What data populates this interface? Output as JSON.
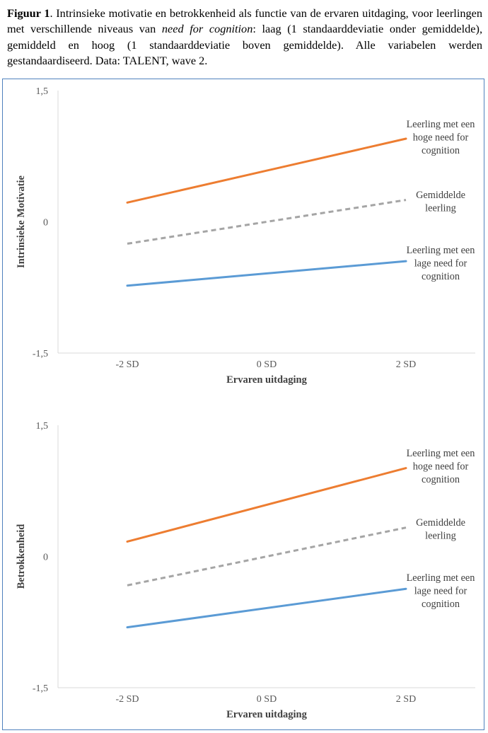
{
  "caption": {
    "label": "Figuur 1",
    "text_before": ". Intrinsieke motivatie en betrokkenheid als functie van de ervaren uitdaging, voor leerlingen met verschillende niveaus van ",
    "italic": "need for cognition",
    "text_after": ": laag (1 standaarddeviatie onder gemiddelde), gemiddeld en hoog (1 standaarddeviatie boven gemiddelde). Alle variabelen werden gestandaardiseerd. Data: TALENT, wave 2."
  },
  "colors": {
    "high": "#ed7d31",
    "average": "#a5a5a5",
    "low": "#5b9bd5",
    "axis": "#d9d9d9",
    "frame": "#4f81bd"
  },
  "chart_data": [
    {
      "type": "line",
      "xlabel": "Ervaren uitdaging",
      "ylabel": "Intrinsieke Motivatie",
      "categories": [
        "-2 SD",
        "0 SD",
        "2 SD"
      ],
      "x": [
        -2,
        2
      ],
      "ylim": [
        -1.5,
        1.5
      ],
      "yticks": [
        "1,5",
        "0",
        "-1,5"
      ],
      "grid": false,
      "series": [
        {
          "key": "high",
          "name": "Leerling met een hoge need for cognition",
          "label_lines": [
            "Leerling met een",
            "hoge need for",
            "cognition"
          ],
          "values": [
            0.22,
            0.95
          ],
          "dashed": false
        },
        {
          "key": "average",
          "name": "Gemiddelde leerling",
          "label_lines": [
            "Gemiddelde",
            "leerling"
          ],
          "values": [
            -0.25,
            0.25
          ],
          "dashed": true
        },
        {
          "key": "low",
          "name": "Leerling met een lage need for cognition",
          "label_lines": [
            "Leerling met een",
            "lage need for",
            "cognition"
          ],
          "values": [
            -0.73,
            -0.45
          ],
          "dashed": false
        }
      ]
    },
    {
      "type": "line",
      "xlabel": "Ervaren uitdaging",
      "ylabel": "Betrokkenheid",
      "categories": [
        "-2 SD",
        "0 SD",
        "2 SD"
      ],
      "x": [
        -2,
        2
      ],
      "ylim": [
        -1.5,
        1.5
      ],
      "yticks": [
        "1,5",
        "0",
        "-1,5"
      ],
      "grid": false,
      "series": [
        {
          "key": "high",
          "name": "Leerling met een hoge need for cognition",
          "label_lines": [
            "Leerling met een",
            "hoge need for",
            "cognition"
          ],
          "values": [
            0.17,
            1.01
          ],
          "dashed": false
        },
        {
          "key": "average",
          "name": "Gemiddelde leerling",
          "label_lines": [
            "Gemiddelde",
            "leerling"
          ],
          "values": [
            -0.33,
            0.33
          ],
          "dashed": true
        },
        {
          "key": "low",
          "name": "Leerling met een lage need for cognition",
          "label_lines": [
            "Leerling met een",
            "lage need for",
            "cognition"
          ],
          "values": [
            -0.81,
            -0.37
          ],
          "dashed": false
        }
      ]
    }
  ]
}
